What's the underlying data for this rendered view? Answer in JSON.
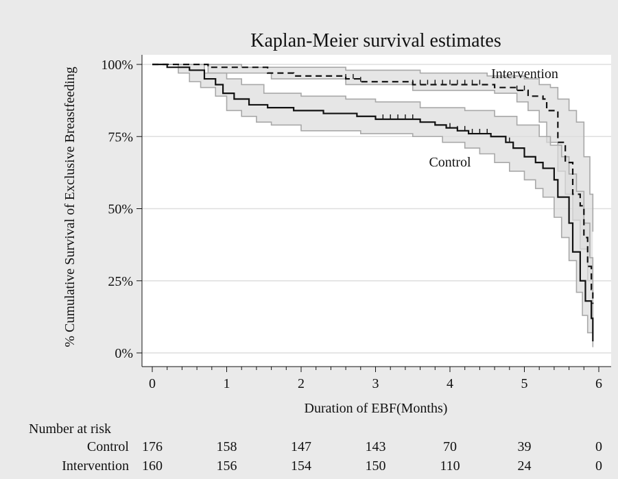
{
  "chart_data": {
    "type": "line",
    "title": "Kaplan-Meier survival estimates",
    "xlabel": "Duration of EBF(Months)",
    "ylabel": "% Cumulative Survival of Exclusive Breastfeeding",
    "xlim": [
      0,
      6
    ],
    "ylim": [
      0,
      100
    ],
    "x_ticks": [
      0,
      1,
      2,
      3,
      4,
      5,
      6
    ],
    "y_ticks": [
      0,
      25,
      50,
      75,
      100
    ],
    "y_tick_labels": [
      "0%",
      "25%",
      "50%",
      "75%",
      "100%"
    ],
    "grid": "horizontal",
    "colors": {
      "panel_bg": "#ffffff",
      "figure_bg": "#eaeaea",
      "ci_fill": "#dcdcdc",
      "ci_line": "#a8a8a8",
      "gridline": "#dedede",
      "line": "#111111"
    },
    "series": [
      {
        "name": "Intervention",
        "style": "dashed",
        "steps": [
          [
            0,
            100
          ],
          [
            0.75,
            99
          ],
          [
            1.55,
            97
          ],
          [
            1.9,
            96
          ],
          [
            2.6,
            95
          ],
          [
            2.8,
            94
          ],
          [
            3.5,
            93
          ],
          [
            4.6,
            92
          ],
          [
            4.9,
            91
          ],
          [
            5.05,
            89
          ],
          [
            5.25,
            88
          ],
          [
            5.3,
            84
          ],
          [
            5.45,
            73
          ],
          [
            5.55,
            66
          ],
          [
            5.65,
            55
          ],
          [
            5.75,
            51
          ],
          [
            5.8,
            40
          ],
          [
            5.85,
            30
          ],
          [
            5.9,
            22
          ],
          [
            5.92,
            17
          ]
        ],
        "upper": [
          [
            0,
            100
          ],
          [
            0.7,
            100
          ],
          [
            1.2,
            99
          ],
          [
            2.6,
            98
          ],
          [
            3.6,
            97
          ],
          [
            4.5,
            96
          ],
          [
            5.0,
            95
          ],
          [
            5.2,
            93
          ],
          [
            5.35,
            92
          ],
          [
            5.45,
            88
          ],
          [
            5.6,
            84
          ],
          [
            5.7,
            80
          ],
          [
            5.8,
            68
          ],
          [
            5.88,
            55
          ],
          [
            5.92,
            42
          ]
        ],
        "lower": [
          [
            0,
            100
          ],
          [
            0.75,
            97
          ],
          [
            1.6,
            95
          ],
          [
            2.6,
            93
          ],
          [
            3.5,
            91
          ],
          [
            4.6,
            90
          ],
          [
            4.9,
            87
          ],
          [
            5.05,
            84
          ],
          [
            5.2,
            80
          ],
          [
            5.3,
            73
          ],
          [
            5.45,
            63
          ],
          [
            5.55,
            55
          ],
          [
            5.65,
            46
          ],
          [
            5.75,
            36
          ],
          [
            5.85,
            25
          ],
          [
            5.92,
            10
          ]
        ],
        "censor_x": [
          2.6,
          2.7,
          2.8,
          3.5,
          3.6,
          3.7,
          3.8,
          3.9,
          4.0,
          4.1,
          4.2,
          4.3,
          4.4,
          4.9,
          5.0
        ]
      },
      {
        "name": "Control",
        "style": "solid",
        "steps": [
          [
            0,
            100
          ],
          [
            0.2,
            99
          ],
          [
            0.5,
            98
          ],
          [
            0.7,
            95
          ],
          [
            0.85,
            93
          ],
          [
            0.95,
            90
          ],
          [
            1.1,
            88
          ],
          [
            1.3,
            86
          ],
          [
            1.55,
            85
          ],
          [
            1.9,
            84
          ],
          [
            2.3,
            83
          ],
          [
            2.75,
            82
          ],
          [
            3.0,
            81
          ],
          [
            3.6,
            80
          ],
          [
            3.8,
            79
          ],
          [
            3.95,
            78
          ],
          [
            4.1,
            77
          ],
          [
            4.25,
            76
          ],
          [
            4.55,
            75
          ],
          [
            4.75,
            73
          ],
          [
            4.85,
            71
          ],
          [
            5.0,
            68
          ],
          [
            5.15,
            66
          ],
          [
            5.25,
            64
          ],
          [
            5.4,
            60
          ],
          [
            5.45,
            54
          ],
          [
            5.6,
            45
          ],
          [
            5.65,
            35
          ],
          [
            5.75,
            25
          ],
          [
            5.82,
            18
          ],
          [
            5.9,
            12
          ],
          [
            5.92,
            4
          ]
        ],
        "upper": [
          [
            0,
            100
          ],
          [
            0.3,
            100
          ],
          [
            0.7,
            97
          ],
          [
            1.0,
            95
          ],
          [
            1.2,
            93
          ],
          [
            1.5,
            90
          ],
          [
            2.0,
            89
          ],
          [
            2.6,
            88
          ],
          [
            3.0,
            87
          ],
          [
            3.6,
            85
          ],
          [
            4.2,
            84
          ],
          [
            4.6,
            82
          ],
          [
            4.9,
            79
          ],
          [
            5.2,
            75
          ],
          [
            5.35,
            72
          ],
          [
            5.5,
            68
          ],
          [
            5.6,
            62
          ],
          [
            5.7,
            56
          ],
          [
            5.8,
            45
          ],
          [
            5.88,
            33
          ],
          [
            5.92,
            20
          ]
        ],
        "lower": [
          [
            0,
            100
          ],
          [
            0.35,
            97
          ],
          [
            0.5,
            94
          ],
          [
            0.65,
            92
          ],
          [
            0.85,
            89
          ],
          [
            1.0,
            84
          ],
          [
            1.2,
            82
          ],
          [
            1.4,
            80
          ],
          [
            1.6,
            79
          ],
          [
            2.0,
            77
          ],
          [
            2.8,
            76
          ],
          [
            3.5,
            75
          ],
          [
            3.9,
            73
          ],
          [
            4.2,
            71
          ],
          [
            4.4,
            69
          ],
          [
            4.6,
            66
          ],
          [
            4.8,
            63
          ],
          [
            5.0,
            60
          ],
          [
            5.15,
            57
          ],
          [
            5.25,
            54
          ],
          [
            5.4,
            47
          ],
          [
            5.5,
            40
          ],
          [
            5.6,
            32
          ],
          [
            5.7,
            21
          ],
          [
            5.78,
            13
          ],
          [
            5.85,
            7
          ],
          [
            5.92,
            2
          ]
        ],
        "censor_x": [
          3.1,
          3.2,
          3.3,
          3.4,
          3.5,
          4.0,
          4.1,
          4.2,
          4.3,
          4.4,
          4.5,
          4.8
        ]
      }
    ],
    "annotations": [
      "Intervention",
      "Control"
    ],
    "risk_table": {
      "title": "Number at risk",
      "times": [
        0,
        1,
        2,
        3,
        4,
        5,
        6
      ],
      "rows": [
        {
          "label": "Control",
          "values": [
            "176",
            "158",
            "147",
            "143",
            "70",
            "39",
            "0"
          ]
        },
        {
          "label": "Intervention",
          "values": [
            "160",
            "156",
            "154",
            "150",
            "110",
            "24",
            "0"
          ]
        }
      ]
    }
  }
}
